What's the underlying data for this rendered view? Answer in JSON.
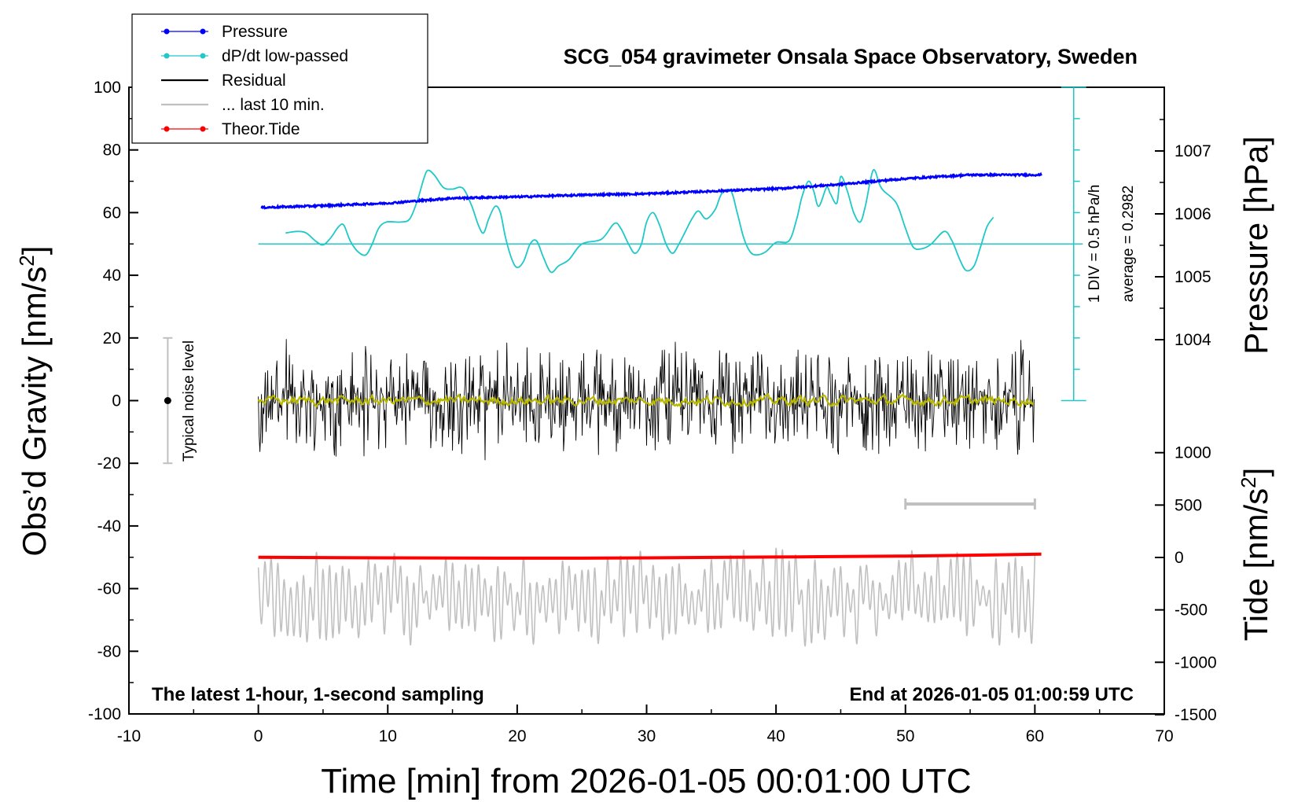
{
  "chart_data": {
    "type": "line",
    "title": "SCG_054 gravimeter Onsala Space Observatory, Sweden",
    "subtitle_left": "The latest 1-hour, 1-second sampling",
    "subtitle_right": "End at 2026-01-05 01:00:59 UTC",
    "xlabel": "Time [min] from 2026-01-05 00:01:00 UTC",
    "xlim": [
      -10,
      70
    ],
    "xticks": [
      "-10",
      "0",
      "10",
      "20",
      "30",
      "40",
      "50",
      "60",
      "70"
    ],
    "ylabel_left": "Obs’d Gravity [nm/s²]",
    "ylabel_left_main": "Obs’d Gravity [nm/s",
    "ylabel_left_sup": "2",
    "ylabel_left_end": "]",
    "ylim_left": [
      -100,
      100
    ],
    "yticks_left": [
      "100",
      "80",
      "60",
      "40",
      "20",
      "0",
      "-20",
      "-40",
      "-60",
      "-80",
      "-100"
    ],
    "ylabel_pressure": "Pressure [hPa]",
    "yticks_pressure": [
      "1007",
      "1006",
      "1005",
      "1004"
    ],
    "ylabel_tide": "Tide [nm/s²]",
    "ylabel_tide_main": "Tide [nm/s",
    "ylabel_tide_sup": "2",
    "ylabel_tide_end": "]",
    "yticks_tide": [
      "1000",
      "500",
      "0",
      "-500",
      "-1000",
      "-1500"
    ],
    "legend": {
      "placement": "top-left",
      "entries": [
        {
          "label": "Pressure",
          "color": "#0000ff",
          "marker": "dot"
        },
        {
          "label": "dP/dt low-passed",
          "color": "#20c8c8",
          "marker": "dot"
        },
        {
          "label": "Residual",
          "color": "#000000",
          "marker": "none"
        },
        {
          "label": "... last 10 min.",
          "color": "#c0c0c0",
          "marker": "none"
        },
        {
          "label": "Theor.Tide",
          "color": "#ff0000",
          "marker": "dot"
        }
      ]
    },
    "noise_label": "Typical noise level",
    "noise_level": {
      "x": -7,
      "center": 0,
      "range": [
        -20,
        20
      ]
    },
    "dpdt_scale_label": "1 DIV = 0.5 hPa/h",
    "dpdt_average_label": "average = 0.2982",
    "last_10_min_bar": [
      50,
      60
    ],
    "series": [
      {
        "name": "Pressure",
        "color": "#0000ff",
        "points": [
          [
            0.2,
            1006.1
          ],
          [
            5,
            1006.13
          ],
          [
            10,
            1006.17
          ],
          [
            15,
            1006.25
          ],
          [
            20,
            1006.27
          ],
          [
            25,
            1006.3
          ],
          [
            30,
            1006.32
          ],
          [
            35,
            1006.36
          ],
          [
            40,
            1006.4
          ],
          [
            41.5,
            1006.42
          ],
          [
            45,
            1006.47
          ],
          [
            50,
            1006.56
          ],
          [
            55,
            1006.62
          ],
          [
            60.5,
            1006.62
          ]
        ]
      },
      {
        "name": "dP/dt low-passed",
        "color": "#20c8c8",
        "baseline_left_units": 50,
        "points": [
          [
            2.1,
            53.5
          ],
          [
            3,
            54
          ],
          [
            3.7,
            53.5
          ],
          [
            4.4,
            51
          ],
          [
            5,
            49.7
          ],
          [
            5.6,
            52
          ],
          [
            6.2,
            55.5
          ],
          [
            6.6,
            56
          ],
          [
            7.1,
            51
          ],
          [
            7.7,
            47.5
          ],
          [
            8.3,
            46.5
          ],
          [
            8.8,
            50
          ],
          [
            9.3,
            55
          ],
          [
            9.9,
            57
          ],
          [
            11,
            57
          ],
          [
            11.7,
            58
          ],
          [
            12.3,
            64
          ],
          [
            12.8,
            71
          ],
          [
            13.1,
            73.5
          ],
          [
            13.6,
            72
          ],
          [
            14.3,
            68
          ],
          [
            15,
            67.5
          ],
          [
            15.8,
            67.8
          ],
          [
            16.5,
            62
          ],
          [
            17,
            56
          ],
          [
            17.4,
            53.5
          ],
          [
            17.8,
            58
          ],
          [
            18.3,
            62
          ],
          [
            18.7,
            60
          ],
          [
            19.1,
            52
          ],
          [
            19.6,
            45
          ],
          [
            20,
            42.5
          ],
          [
            20.5,
            44.5
          ],
          [
            21,
            50
          ],
          [
            21.5,
            51
          ],
          [
            22,
            46
          ],
          [
            22.6,
            41
          ],
          [
            23.2,
            43
          ],
          [
            24,
            45
          ],
          [
            25,
            50
          ],
          [
            26.5,
            51.5
          ],
          [
            27.5,
            56.5
          ],
          [
            28,
            55
          ],
          [
            28.6,
            50
          ],
          [
            29.1,
            47
          ],
          [
            29.6,
            50
          ],
          [
            30,
            57
          ],
          [
            30.5,
            60
          ],
          [
            31,
            56
          ],
          [
            31.5,
            50
          ],
          [
            32,
            47
          ],
          [
            32.5,
            50
          ],
          [
            33,
            54
          ],
          [
            33.5,
            58
          ],
          [
            34,
            60.5
          ],
          [
            34.6,
            58
          ],
          [
            35.3,
            61
          ],
          [
            35.8,
            66
          ],
          [
            36.5,
            67
          ],
          [
            37,
            60
          ],
          [
            37.5,
            52
          ],
          [
            38,
            47.5
          ],
          [
            38.5,
            46.5
          ],
          [
            39.2,
            47.5
          ],
          [
            40,
            50.5
          ],
          [
            41,
            51
          ],
          [
            41.6,
            58
          ],
          [
            42,
            65
          ],
          [
            42.5,
            70
          ],
          [
            42.9,
            67
          ],
          [
            43.3,
            62
          ],
          [
            43.9,
            68
          ],
          [
            44.2,
            66
          ],
          [
            44.7,
            63
          ],
          [
            45,
            71.5
          ],
          [
            45.5,
            67
          ],
          [
            46,
            60
          ],
          [
            46.5,
            57
          ],
          [
            46.9,
            62
          ],
          [
            47.5,
            73.5
          ],
          [
            48,
            69
          ],
          [
            48.3,
            67
          ],
          [
            49.3,
            63
          ],
          [
            50,
            55
          ],
          [
            50.6,
            49
          ],
          [
            51.3,
            48.5
          ],
          [
            52,
            50
          ],
          [
            53,
            54
          ],
          [
            53.6,
            51
          ],
          [
            54.2,
            45
          ],
          [
            54.7,
            41.5
          ],
          [
            55.3,
            43
          ],
          [
            55.8,
            49
          ],
          [
            56.3,
            55.5
          ],
          [
            56.8,
            58.5
          ]
        ]
      },
      {
        "name": "Residual",
        "color": "#000000",
        "x_range": [
          0,
          60
        ],
        "envelope": [
          -18,
          18
        ]
      },
      {
        "name": "low-passed residual",
        "color": "#b8b800",
        "x_range": [
          0,
          60
        ],
        "envelope": [
          -2,
          2
        ]
      },
      {
        "name": "... last 10 min.",
        "color": "#c0c0c0",
        "x_range": [
          0,
          60
        ],
        "center_left_units": -63,
        "envelope": [
          -80,
          -46
        ]
      },
      {
        "name": "Theor.Tide",
        "color": "#ff0000",
        "points": [
          [
            0,
            -50
          ],
          [
            10,
            -50.2
          ],
          [
            20,
            -50.3
          ],
          [
            30,
            -50.2
          ],
          [
            40,
            -49.9
          ],
          [
            50,
            -49.6
          ],
          [
            60.5,
            -49
          ]
        ]
      }
    ]
  }
}
